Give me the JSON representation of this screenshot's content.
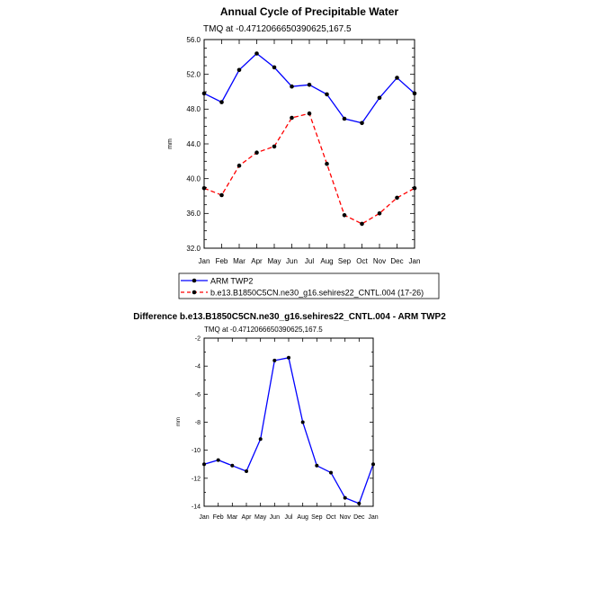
{
  "chart_data": [
    {
      "type": "line",
      "title": "Annual Cycle of Precipitable Water",
      "subtitle": "TMQ at -0.4712066650390625,167.5",
      "ylabel": "mm",
      "xlabel": "",
      "categories": [
        "Jan",
        "Feb",
        "Mar",
        "Apr",
        "May",
        "Jun",
        "Jul",
        "Aug",
        "Sep",
        "Oct",
        "Nov",
        "Dec",
        "Jan"
      ],
      "ylim": [
        32.0,
        56.0
      ],
      "yticks": [
        "32.0",
        "36.0",
        "40.0",
        "44.0",
        "48.0",
        "52.0",
        "56.0"
      ],
      "grid": false,
      "legend_position": "bottom",
      "series": [
        {
          "name": "ARM TWP2",
          "color": "#0000ff",
          "dash": "solid",
          "values": [
            49.8,
            48.8,
            52.5,
            54.4,
            52.8,
            50.6,
            50.8,
            49.7,
            46.9,
            46.4,
            49.3,
            51.6,
            49.8
          ]
        },
        {
          "name": "b.e13.B1850C5CN.ne30_g16.sehires22_CNTL.004 (17-26)",
          "color": "#ff0000",
          "dash": "dashed",
          "values": [
            38.9,
            38.1,
            41.5,
            43.0,
            43.7,
            47.0,
            47.5,
            41.7,
            35.8,
            34.8,
            36.0,
            37.8,
            38.9
          ]
        }
      ]
    },
    {
      "type": "line",
      "title": "Difference b.e13.B1850C5CN.ne30_g16.sehires22_CNTL.004 - ARM TWP2",
      "subtitle": "TMQ at -0.4712066650390625,167.5",
      "ylabel": "mm",
      "xlabel": "",
      "categories": [
        "Jan",
        "Feb",
        "Mar",
        "Apr",
        "May",
        "Jun",
        "Jul",
        "Aug",
        "Sep",
        "Oct",
        "Nov",
        "Dec",
        "Jan"
      ],
      "ylim": [
        -14,
        -2
      ],
      "yticks": [
        "-14",
        "-12",
        "-10",
        "-8",
        "-6",
        "-4",
        "-2"
      ],
      "grid": false,
      "series": [
        {
          "color": "#0000ff",
          "dash": "solid",
          "values": [
            -11.0,
            -10.7,
            -11.1,
            -11.5,
            -9.2,
            -3.6,
            -3.4,
            -8.0,
            -11.1,
            -11.6,
            -13.4,
            -13.8,
            -11.0
          ]
        }
      ]
    }
  ]
}
